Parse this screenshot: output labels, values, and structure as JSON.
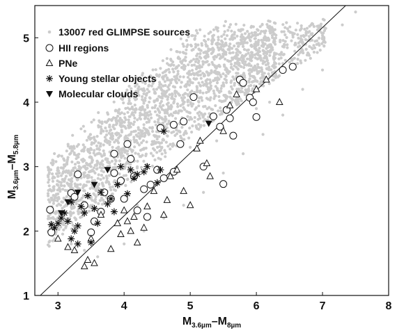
{
  "chart_data": {
    "type": "scatter",
    "xlabel": {
      "base1": "M",
      "sub1": "3.6µm",
      "dash": "–",
      "base2": "M",
      "sub2": "8µm"
    },
    "ylabel": {
      "base1": "M",
      "sub1": "3.6µm",
      "dash": "–",
      "base2": "M",
      "sub2": "5.8µm"
    },
    "xlim": [
      2.65,
      8.0
    ],
    "ylim": [
      1.0,
      5.5
    ],
    "xticks": [
      "3",
      "4",
      "5",
      "6",
      "7",
      "8"
    ],
    "yticks": [
      "1",
      "2",
      "3",
      "4",
      "5"
    ],
    "grid": false,
    "legend_position": "top-left",
    "colors": {
      "background_points": "#cccccc",
      "markers": "#111111"
    },
    "reference_line": {
      "x": [
        2.65,
        7.35
      ],
      "y": [
        0.92,
        5.5
      ]
    },
    "series": [
      {
        "name": "13007 red GLIMPSE sources",
        "marker": "dot",
        "note_density": "dense cloud of light grey points",
        "values": [
          [
            2.9,
            2.2
          ],
          [
            3.0,
            2.3
          ],
          [
            3.1,
            2.5
          ],
          [
            3.2,
            2.7
          ],
          [
            3.3,
            2.8
          ],
          [
            3.5,
            3.0
          ],
          [
            3.7,
            3.2
          ],
          [
            3.9,
            3.4
          ],
          [
            4.1,
            3.5
          ],
          [
            4.3,
            3.6
          ],
          [
            4.5,
            3.8
          ],
          [
            4.7,
            3.9
          ],
          [
            4.9,
            4.0
          ],
          [
            5.1,
            4.1
          ],
          [
            5.3,
            4.2
          ],
          [
            5.5,
            4.3
          ],
          [
            5.7,
            4.4
          ],
          [
            5.9,
            4.5
          ],
          [
            6.1,
            4.6
          ],
          [
            6.4,
            4.6
          ],
          [
            6.7,
            4.8
          ],
          [
            7.0,
            5.0
          ],
          [
            7.3,
            5.2
          ],
          [
            7.5,
            5.4
          ],
          [
            3.0,
            1.9
          ],
          [
            3.2,
            1.8
          ],
          [
            3.4,
            1.7
          ],
          [
            3.6,
            1.6
          ],
          [
            3.8,
            1.7
          ],
          [
            4.0,
            1.8
          ],
          [
            4.3,
            2.0
          ],
          [
            4.6,
            2.2
          ],
          [
            4.9,
            2.4
          ],
          [
            5.2,
            2.6
          ],
          [
            5.5,
            2.9
          ],
          [
            5.8,
            3.2
          ],
          [
            6.1,
            3.5
          ],
          [
            6.4,
            3.8
          ],
          [
            6.7,
            4.2
          ],
          [
            7.0,
            4.5
          ],
          [
            3.5,
            2.5
          ],
          [
            4.0,
            2.8
          ],
          [
            4.5,
            3.0
          ],
          [
            5.0,
            3.3
          ],
          [
            5.5,
            3.6
          ],
          [
            6.0,
            3.9
          ],
          [
            4.2,
            2.4
          ],
          [
            4.8,
            2.9
          ],
          [
            5.4,
            3.4
          ],
          [
            6.2,
            4.0
          ]
        ]
      },
      {
        "name": "HII regions",
        "marker": "open-circle",
        "values": [
          [
            2.88,
            2.33
          ],
          [
            2.9,
            1.98
          ],
          [
            3.2,
            2.59
          ],
          [
            3.25,
            2.53
          ],
          [
            3.3,
            2.88
          ],
          [
            3.4,
            2.4
          ],
          [
            3.5,
            1.98
          ],
          [
            3.55,
            2.15
          ],
          [
            3.65,
            2.3
          ],
          [
            3.7,
            2.6
          ],
          [
            3.8,
            2.5
          ],
          [
            3.85,
            2.9
          ],
          [
            3.85,
            3.2
          ],
          [
            3.95,
            2.78
          ],
          [
            4.0,
            2.5
          ],
          [
            4.05,
            3.35
          ],
          [
            4.1,
            3.12
          ],
          [
            4.15,
            2.85
          ],
          [
            4.2,
            2.32
          ],
          [
            4.3,
            2.65
          ],
          [
            4.35,
            2.22
          ],
          [
            4.4,
            2.72
          ],
          [
            4.5,
            2.95
          ],
          [
            4.55,
            3.6
          ],
          [
            4.6,
            2.82
          ],
          [
            4.75,
            3.65
          ],
          [
            4.75,
            2.92
          ],
          [
            4.85,
            3.35
          ],
          [
            4.9,
            3.7
          ],
          [
            5.05,
            4.08
          ],
          [
            5.2,
            3.0
          ],
          [
            5.35,
            3.78
          ],
          [
            5.45,
            3.62
          ],
          [
            5.5,
            2.73
          ],
          [
            5.55,
            3.88
          ],
          [
            5.6,
            3.75
          ],
          [
            5.65,
            3.48
          ],
          [
            5.75,
            4.35
          ],
          [
            5.8,
            4.3
          ],
          [
            5.9,
            4.07
          ],
          [
            5.95,
            4.0
          ],
          [
            6.0,
            3.77
          ],
          [
            6.4,
            4.5
          ],
          [
            6.55,
            4.55
          ]
        ]
      },
      {
        "name": "PNe",
        "marker": "open-triangle",
        "values": [
          [
            3.0,
            1.88
          ],
          [
            3.15,
            1.75
          ],
          [
            3.25,
            1.7
          ],
          [
            3.4,
            1.45
          ],
          [
            3.45,
            1.55
          ],
          [
            3.5,
            1.88
          ],
          [
            3.55,
            1.5
          ],
          [
            3.65,
            2.25
          ],
          [
            3.8,
            1.72
          ],
          [
            3.9,
            2.12
          ],
          [
            3.95,
            1.95
          ],
          [
            4.0,
            2.32
          ],
          [
            4.05,
            2.15
          ],
          [
            4.1,
            2.0
          ],
          [
            4.15,
            2.22
          ],
          [
            4.2,
            1.82
          ],
          [
            4.3,
            2.05
          ],
          [
            4.35,
            2.38
          ],
          [
            4.45,
            2.62
          ],
          [
            4.6,
            2.25
          ],
          [
            4.65,
            2.48
          ],
          [
            4.7,
            2.85
          ],
          [
            4.8,
            2.95
          ],
          [
            4.9,
            2.62
          ],
          [
            5.0,
            2.4
          ],
          [
            5.1,
            3.28
          ],
          [
            5.15,
            3.4
          ],
          [
            5.25,
            3.05
          ],
          [
            5.3,
            2.85
          ],
          [
            5.5,
            3.55
          ],
          [
            5.6,
            3.95
          ],
          [
            5.7,
            4.12
          ],
          [
            6.0,
            4.2
          ],
          [
            6.15,
            4.35
          ],
          [
            6.35,
            4.0
          ]
        ]
      },
      {
        "name": "Young stellar objects",
        "marker": "asterisk",
        "values": [
          [
            2.9,
            2.1
          ],
          [
            2.95,
            2.05
          ],
          [
            3.0,
            2.12
          ],
          [
            3.05,
            2.2
          ],
          [
            3.1,
            2.28
          ],
          [
            3.15,
            2.15
          ],
          [
            3.2,
            2.45
          ],
          [
            3.25,
            2.0
          ],
          [
            3.3,
            2.08
          ],
          [
            3.35,
            2.38
          ],
          [
            3.4,
            2.28
          ],
          [
            3.45,
            2.55
          ],
          [
            3.55,
            2.35
          ],
          [
            3.6,
            2.12
          ],
          [
            3.65,
            2.6
          ],
          [
            3.75,
            2.42
          ],
          [
            3.8,
            2.5
          ],
          [
            3.85,
            2.3
          ],
          [
            3.9,
            2.72
          ],
          [
            3.95,
            3.0
          ],
          [
            4.05,
            2.58
          ],
          [
            4.1,
            2.95
          ],
          [
            4.15,
            2.82
          ],
          [
            4.2,
            2.88
          ],
          [
            4.3,
            2.92
          ],
          [
            4.35,
            3.0
          ],
          [
            4.5,
            2.75
          ],
          [
            4.55,
            2.95
          ],
          [
            4.6,
            3.55
          ],
          [
            3.2,
            1.88
          ],
          [
            3.3,
            1.8
          ],
          [
            3.5,
            1.82
          ]
        ]
      },
      {
        "name": "Molecular clouds",
        "marker": "filled-triangle-down",
        "values": [
          [
            3.05,
            2.28
          ],
          [
            3.15,
            2.45
          ],
          [
            3.3,
            2.6
          ],
          [
            3.55,
            2.72
          ],
          [
            3.75,
            2.95
          ],
          [
            5.28,
            3.67
          ]
        ]
      }
    ]
  }
}
